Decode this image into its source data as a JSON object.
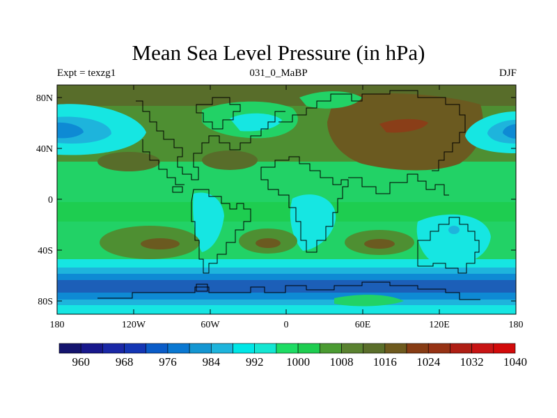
{
  "map": {
    "title": "Mean Sea Level Pressure (in hPa)",
    "left_label": "Expt = texzg1",
    "center_label": "031_0_MaBP",
    "right_label": "DJF",
    "lon_ticks": [
      "180",
      "120W",
      "60W",
      "0",
      "60E",
      "120E",
      "180"
    ],
    "lat_ticks": [
      "80N",
      "40N",
      "0",
      "40S",
      "80S"
    ],
    "projection": "cylindrical equidistant",
    "lon_range": [
      -180,
      180
    ],
    "lat_range": [
      -90,
      90
    ]
  },
  "colorbar": {
    "labels": [
      "960",
      "968",
      "976",
      "984",
      "992",
      "1000",
      "1008",
      "1016",
      "1024",
      "1032",
      "1040"
    ],
    "colors": [
      "#14146e",
      "#18188c",
      "#1a28a6",
      "#1436b4",
      "#0a5cc8",
      "#0a78d2",
      "#1496d2",
      "#1eb4dc",
      "#00e6e6",
      "#14e6d2",
      "#1edc64",
      "#1ecd50",
      "#4b9b32",
      "#5a8230",
      "#5a6e2a",
      "#6e5a1e",
      "#873c14",
      "#963214",
      "#af1e14",
      "#c81414",
      "#d20a0a"
    ]
  },
  "fill_colors": {
    "deep_low": "#1c5fb8",
    "low": "#0e8ad4",
    "mid_low": "#1eb4dc",
    "cyan": "#16e6e2",
    "green": "#22d266",
    "green2": "#19c24e",
    "olive_green": "#4e8f32",
    "olive": "#586d2a",
    "brown": "#6b5a20",
    "red_brown": "#8a3e18"
  }
}
